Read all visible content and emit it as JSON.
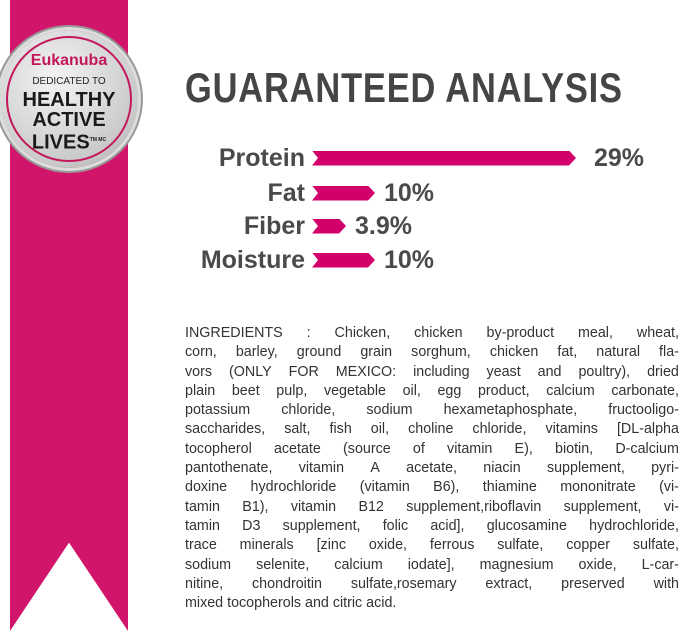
{
  "badge": {
    "brand": "Eukanuba",
    "dedicated": "DEDICATED TO",
    "line1": "HEALTHY",
    "line2": "ACTIVE",
    "line3": "LIVES",
    "tm": "TM MC"
  },
  "title": "GUARANTEED ANALYSIS",
  "analysis": [
    {
      "label": "Protein",
      "value": "29%",
      "percent": 29
    },
    {
      "label": "Fat",
      "value": "10%",
      "percent": 10
    },
    {
      "label": "Fiber",
      "value": "3.9%",
      "percent": 3.9
    },
    {
      "label": "Moisture",
      "value": "10%",
      "percent": 10
    }
  ],
  "colors": {
    "accent": "#d1156b",
    "text": "#454545"
  },
  "ingredients_lines": [
    "INGREDIENTS : Chicken, chicken by-product meal, wheat,",
    "corn, barley, ground grain sorghum, chicken fat, natural fla-",
    "vors (ONLY FOR MEXICO: including yeast and poultry), dried",
    "plain beet pulp, vegetable oil, egg product, calcium carbonate,",
    "potassium chloride, sodium hexametaphosphate, fructooligo-",
    "saccharides, salt, fish oil, choline chloride, vitamins [DL-alpha",
    "tocopherol acetate (source of vitamin E), biotin, D-calcium",
    "pantothenate, vitamin A acetate, niacin supplement, pyri-",
    "doxine hydrochloride (vitamin B6), thiamine mononitrate (vi-",
    "tamin B1), vitamin B12 supplement,riboflavin supplement, vi-",
    "tamin D3 supplement, folic acid], glucosamine hydrochloride,",
    "trace minerals [zinc oxide, ferrous sulfate, copper sulfate,",
    "sodium selenite, calcium iodate], magnesium oxide, L-car-",
    "nitine, chondroitin sulfate,rosemary extract, preserved with",
    "mixed tocopherols and citric acid."
  ]
}
